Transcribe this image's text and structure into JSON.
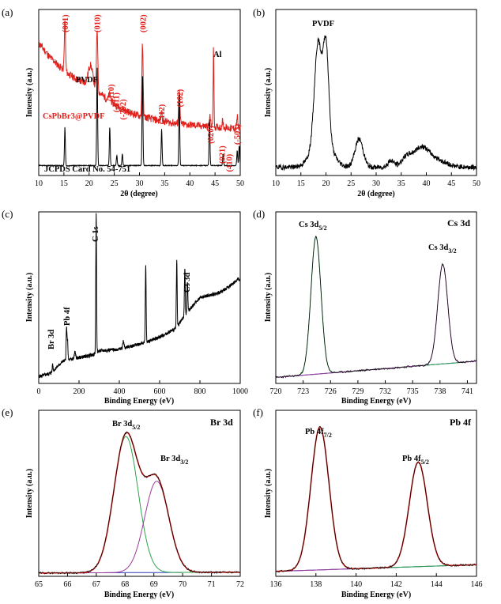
{
  "chart_data": [
    {
      "panel": "(a)",
      "type": "line",
      "xlabel": "2θ (degree)",
      "ylabel": "Intensity (a.u.)",
      "xlim": [
        10,
        50
      ],
      "xticks": [
        10,
        15,
        20,
        25,
        30,
        35,
        40,
        45,
        50
      ],
      "colors": {
        "sample": "#e0201b",
        "reference": "#000000"
      },
      "annotations": {
        "pvdf": "PVDF",
        "al": "Al",
        "sample_label": "CsPbBr3@PVDF",
        "reference_label": "JCPDS Card No. 54-751"
      },
      "peak_labels": [
        {
          "label": "(001)",
          "x": 15.2
        },
        {
          "label": "(010)",
          "x": 21.5
        },
        {
          "label": "(110)",
          "x": 24.3
        },
        {
          "label": "(-111)",
          "x": 25.3
        },
        {
          "label": "(-202)",
          "x": 26.6
        },
        {
          "label": "(002)",
          "x": 30.6
        },
        {
          "label": "(-112)",
          "x": 34.3
        },
        {
          "label": "(102)",
          "x": 37.9
        },
        {
          "label": "(020)",
          "x": 44.0
        },
        {
          "label": "(021)",
          "x": 46.3
        },
        {
          "label": "(410)",
          "x": 47.7
        },
        {
          "label": "(-503)",
          "x": 49.3
        }
      ],
      "series": [
        {
          "name": "CsPbBr3@PVDF",
          "color": "#e0201b",
          "background": [
            [
              10,
              0.8
            ],
            [
              12,
              0.72
            ],
            [
              14,
              0.66
            ],
            [
              16,
              0.61
            ],
            [
              18,
              0.57
            ],
            [
              20,
              0.55
            ],
            [
              22,
              0.5
            ],
            [
              24,
              0.45
            ],
            [
              26,
              0.41
            ],
            [
              28,
              0.38
            ],
            [
              30,
              0.36
            ],
            [
              34,
              0.33
            ],
            [
              38,
              0.31
            ],
            [
              42,
              0.3
            ],
            [
              46,
              0.29
            ],
            [
              50,
              0.28
            ]
          ],
          "peaks": [
            [
              15.2,
              0.3,
              0.12
            ],
            [
              20.3,
              0.12,
              0.45
            ],
            [
              21.6,
              0.37,
              0.13
            ],
            [
              24.1,
              0.04,
              0.2
            ],
            [
              30.6,
              0.43,
              0.12
            ],
            [
              34.4,
              0.06,
              0.12
            ],
            [
              37.9,
              0.22,
              0.12
            ],
            [
              44.0,
              0.06,
              0.12
            ],
            [
              44.7,
              0.48,
              0.08
            ],
            [
              46.5,
              0.04,
              0.12
            ],
            [
              49.4,
              0.07,
              0.12
            ]
          ]
        },
        {
          "name": "JCPDS Card No. 54-751",
          "color": "#000000",
          "baseline": 0.06,
          "peaks": [
            [
              15.2,
              0.23
            ],
            [
              21.6,
              0.59
            ],
            [
              24.1,
              0.23
            ],
            [
              25.5,
              0.06
            ],
            [
              26.6,
              0.07
            ],
            [
              30.6,
              0.55
            ],
            [
              34.4,
              0.22
            ],
            [
              37.9,
              0.43
            ],
            [
              43.9,
              0.28
            ],
            [
              46.6,
              0.07
            ],
            [
              49.4,
              0.09
            ],
            [
              49.8,
              0.12
            ]
          ]
        }
      ]
    },
    {
      "panel": "(b)",
      "type": "line",
      "xlabel": "2θ (degree)",
      "ylabel": "Intensity (a.u.)",
      "xlim": [
        10,
        50
      ],
      "xticks": [
        10,
        15,
        20,
        25,
        30,
        35,
        40,
        45,
        50
      ],
      "annotations": {
        "pvdf": "PVDF"
      },
      "series": [
        {
          "name": "PVDF",
          "color": "#000000",
          "baseline": 0.05,
          "peaks": [
            [
              18.4,
              0.57,
              0.7
            ],
            [
              20.0,
              0.56,
              0.55
            ],
            [
              19.2,
              0.2,
              1.8
            ],
            [
              26.6,
              0.17,
              0.8
            ],
            [
              33.0,
              0.04,
              0.6
            ],
            [
              36.0,
              0.05,
              1.0
            ],
            [
              38.9,
              0.11,
              1.6
            ],
            [
              42.0,
              0.04,
              2.0
            ]
          ]
        }
      ]
    },
    {
      "panel": "(c)",
      "type": "line",
      "xlabel": "Binding Energy (eV)",
      "ylabel": "Intensity (a.u.)",
      "xlim": [
        0,
        1000
      ],
      "xticks": [
        0,
        200,
        400,
        600,
        800,
        1000
      ],
      "annotations": [
        "Br 3d",
        "Pb 4f",
        "C 1s",
        "Cs 3d"
      ],
      "series": [
        {
          "name": "Survey",
          "color": "#000000",
          "background": [
            [
              0,
              0.04
            ],
            [
              60,
              0.06
            ],
            [
              120,
              0.13
            ],
            [
              200,
              0.15
            ],
            [
              280,
              0.17
            ],
            [
              300,
              0.19
            ],
            [
              400,
              0.2
            ],
            [
              500,
              0.23
            ],
            [
              530,
              0.24
            ],
            [
              600,
              0.27
            ],
            [
              680,
              0.32
            ],
            [
              740,
              0.42
            ],
            [
              800,
              0.5
            ],
            [
              900,
              0.53
            ],
            [
              950,
              0.57
            ],
            [
              990,
              0.61
            ],
            [
              1000,
              0.6
            ]
          ],
          "peaks": [
            [
              69,
              0.04,
              2
            ],
            [
              138,
              0.19,
              2
            ],
            [
              143,
              0.11,
              2
            ],
            [
              180,
              0.04,
              3
            ],
            [
              285,
              0.82,
              2
            ],
            [
              420,
              0.04,
              3
            ],
            [
              531,
              0.45,
              2
            ],
            [
              685,
              0.39,
              2
            ],
            [
              725,
              0.28,
              2
            ],
            [
              738,
              0.18,
              2
            ]
          ]
        }
      ]
    },
    {
      "panel": "(d)",
      "title": "Cs 3d",
      "type": "line",
      "xlabel": "Binding Energy (eV)",
      "ylabel": "Intensity (a.u.)",
      "xlim": [
        720,
        742
      ],
      "xticks": [
        720,
        723,
        726,
        729,
        732,
        735,
        738,
        741
      ],
      "peak_labels": [
        {
          "main": "Cs 3d",
          "sub": "5/2",
          "x": 724.3
        },
        {
          "main": "Cs 3d",
          "sub": "3/2",
          "x": 738.3
        }
      ],
      "series": [
        {
          "name": "Cs 3d5/2 fit",
          "color": "#2aa34a",
          "center": 724.4,
          "height": 0.8,
          "width": 0.55
        },
        {
          "name": "Cs 3d3/2 fit",
          "color": "#9b3a9b",
          "center": 738.3,
          "height": 0.58,
          "width": 0.55
        },
        {
          "name": "Background",
          "color": "#2a3ab8",
          "range": [
            0.035,
            0.13
          ]
        },
        {
          "name": "Measured",
          "color": "#000000"
        }
      ]
    },
    {
      "panel": "(e)",
      "title": "Br 3d",
      "type": "line",
      "xlabel": "Binding Energy (eV)",
      "ylabel": "Intensity (a.u.)",
      "xlim": [
        65,
        72
      ],
      "xticks": [
        65,
        66,
        67,
        68,
        69,
        70,
        71,
        72
      ],
      "peak_labels": [
        {
          "main": "Br 3d",
          "sub": "5/2",
          "x": 68.0
        },
        {
          "main": "Br 3d",
          "sub": "3/2",
          "x": 69.2
        }
      ],
      "series": [
        {
          "name": "Br 3d5/2 fit",
          "color": "#2aa34a",
          "center": 68.03,
          "height": 0.82,
          "width": 0.42
        },
        {
          "name": "Br 3d3/2 fit",
          "color": "#9b3a9b",
          "center": 69.1,
          "height": 0.55,
          "width": 0.42
        },
        {
          "name": "Background",
          "color": "#2a3ab8",
          "range": [
            0.02,
            0.025
          ]
        },
        {
          "name": "Envelope",
          "color": "#e0201b"
        },
        {
          "name": "Measured",
          "color": "#000000"
        }
      ]
    },
    {
      "panel": "(f)",
      "title": "Pb 4f",
      "type": "line",
      "xlabel": "Binding Energy (eV)",
      "ylabel": "Intensity (a.u.)",
      "xlim": [
        136,
        146
      ],
      "xticks": [
        136,
        138,
        140,
        142,
        144,
        146
      ],
      "peak_labels": [
        {
          "main": "Pb 4f",
          "sub": "7/2",
          "x": 138.1
        },
        {
          "main": "Pb 4f",
          "sub": "5/2",
          "x": 143.2
        }
      ],
      "series": [
        {
          "name": "Pb 4f7/2 fit",
          "color": "#2aa34a",
          "center": 138.2,
          "height": 0.86,
          "width": 0.45
        },
        {
          "name": "Pb 4f5/2 fit",
          "color": "#9b3a9b",
          "center": 143.1,
          "height": 0.63,
          "width": 0.45
        },
        {
          "name": "Background",
          "color": "#2a3ab8",
          "range": [
            0.03,
            0.07
          ]
        },
        {
          "name": "Envelope",
          "color": "#e0201b"
        },
        {
          "name": "Measured",
          "color": "#000000"
        }
      ]
    }
  ]
}
